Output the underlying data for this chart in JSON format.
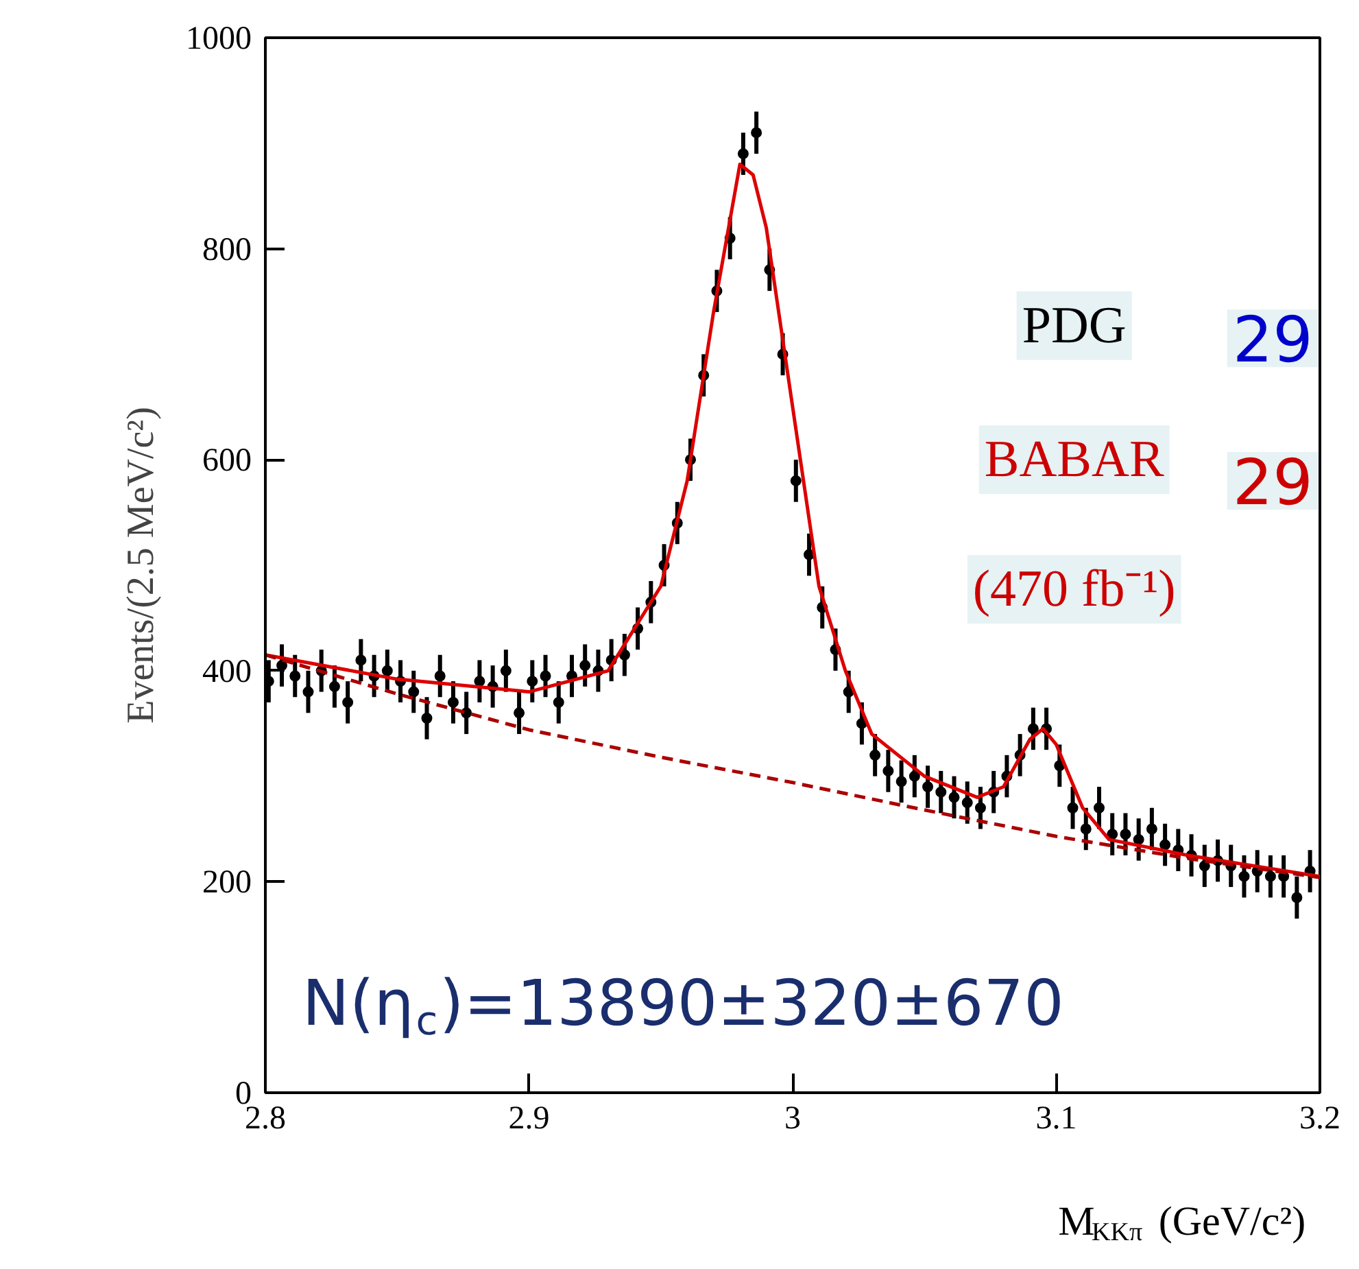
{
  "chart_data": {
    "type": "scatter",
    "xlabel": "M$_{KKπ}$ (GeV/c²)",
    "ylabel": "Events/(2.5 MeV/c²)",
    "xlim": [
      2.8,
      3.2
    ],
    "ylim": [
      0,
      1000
    ],
    "xticks": [
      {
        "value": 2.8,
        "label": "2.8"
      },
      {
        "value": 2.9,
        "label": "2.9"
      },
      3,
      {
        "value": 3.1,
        "label": "3.1"
      },
      {
        "value": 3.2,
        "label": "3.2"
      }
    ],
    "yticks": [
      0,
      200,
      400,
      600,
      800,
      1000
    ],
    "grid": false,
    "series": [
      {
        "color": "#000000",
        "marker": "circle",
        "x": [
          2.80125,
          2.80625,
          2.81125,
          2.81625,
          2.82125,
          2.82625,
          2.83125,
          2.83625,
          2.84125,
          2.84625,
          2.85125,
          2.85625,
          2.86125,
          2.86625,
          2.87125,
          2.87625,
          2.88125,
          2.88625,
          2.89125,
          2.89625,
          2.90125,
          2.90625,
          2.91125,
          2.91625,
          2.92125,
          2.92625,
          2.93125,
          2.93625,
          2.94125,
          2.94625,
          2.95125,
          2.95625,
          2.96125,
          2.96625,
          2.97125,
          2.97625,
          2.98125,
          2.98625,
          2.99125,
          2.99625,
          3.00125,
          3.00625,
          3.01125,
          3.01625,
          3.02125,
          3.02625,
          3.03125,
          3.03625,
          3.04125,
          3.04625,
          3.05125,
          3.05625,
          3.06125,
          3.06625,
          3.07125,
          3.07625,
          3.08125,
          3.08625,
          3.09125,
          3.09625,
          3.10125,
          3.10625,
          3.11125,
          3.11625,
          3.12125,
          3.12625,
          3.13125,
          3.13625,
          3.14125,
          3.14625,
          3.15125,
          3.15625,
          3.16125,
          3.16625,
          3.17125,
          3.17625,
          3.18125,
          3.18625,
          3.19125,
          3.19625
        ],
        "values": [
          390,
          405,
          395,
          380,
          400,
          385,
          370,
          410,
          395,
          400,
          390,
          380,
          355,
          395,
          370,
          360,
          390,
          385,
          400,
          360,
          390,
          395,
          370,
          395,
          405,
          400,
          410,
          415,
          440,
          465,
          500,
          540,
          600,
          680,
          760,
          810,
          890,
          910,
          780,
          700,
          580,
          510,
          460,
          420,
          380,
          350,
          320,
          305,
          295,
          300,
          290,
          285,
          280,
          275,
          270,
          285,
          300,
          320,
          345,
          345,
          310,
          270,
          250,
          270,
          245,
          245,
          240,
          250,
          235,
          230,
          225,
          215,
          220,
          215,
          205,
          210,
          205,
          205,
          185,
          210
        ],
        "errors": [
          20,
          20,
          20,
          20,
          20,
          20,
          20,
          20,
          20,
          20,
          20,
          20,
          20,
          20,
          20,
          20,
          20,
          20,
          20,
          20,
          20,
          20,
          20,
          20,
          20,
          20,
          20,
          20,
          20,
          20,
          20,
          20,
          20,
          20,
          20,
          20,
          20,
          20,
          20,
          20,
          20,
          20,
          20,
          20,
          20,
          20,
          20,
          20,
          20,
          20,
          20,
          20,
          20,
          20,
          20,
          20,
          20,
          20,
          20,
          20,
          20,
          20,
          20,
          20,
          20,
          20,
          20,
          20,
          20,
          20,
          20,
          20,
          20,
          20,
          20,
          20,
          20,
          20,
          20,
          20
        ]
      },
      {
        "type": "line",
        "color": "#dd0000",
        "line_style": "solid",
        "x": [
          2.8,
          2.85,
          2.9,
          2.93,
          2.95,
          2.96,
          2.97,
          2.98,
          2.985,
          2.99,
          3.0,
          3.01,
          3.02,
          3.03,
          3.05,
          3.07,
          3.08,
          3.09,
          3.095,
          3.1,
          3.11,
          3.12,
          3.15,
          3.2
        ],
        "values": [
          415,
          392,
          380,
          400,
          480,
          580,
          740,
          880,
          870,
          820,
          650,
          480,
          400,
          340,
          300,
          280,
          290,
          335,
          345,
          330,
          270,
          240,
          225,
          205
        ]
      },
      {
        "type": "line",
        "color": "#aa0000",
        "line_style": "dashed",
        "x": [
          2.8,
          2.85,
          2.9,
          2.95,
          3.0,
          3.05,
          3.1,
          3.15,
          3.2
        ],
        "values": [
          415,
          378,
          344,
          318,
          294,
          268,
          243,
          222,
          204
        ]
      }
    ],
    "annotations": [
      "N(η$_{c}$)=13890±320±670",
      "PDG",
      "29",
      "BABAR",
      "(470 fb⁻¹)",
      "29"
    ]
  }
}
